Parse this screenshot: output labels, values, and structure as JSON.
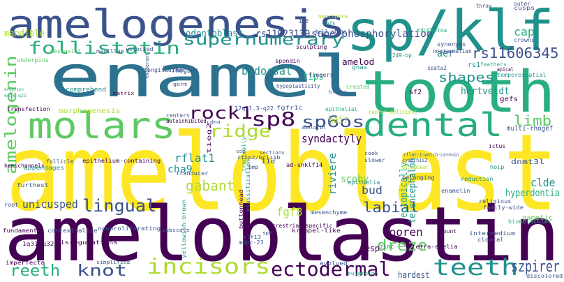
{
  "palette": {
    "dark_purple": "#440154",
    "indigo": "#3b528b",
    "blue": "#2c728e",
    "teal": "#21918c",
    "green": "#28ae80",
    "light_green": "#5ec962",
    "lime": "#addc30",
    "yellow": "#fde725"
  },
  "words": [
    {
      "text": "ameloblast",
      "color": "#fde725"
    },
    {
      "text": "ameloblastin",
      "color": "#440154"
    },
    {
      "text": "enamel",
      "color": "#2c728e"
    },
    {
      "text": "tooth",
      "color": "#28ae80"
    },
    {
      "text": "sp/klf",
      "color": "#21918c"
    },
    {
      "text": "amelogenesis",
      "color": "#3b528b"
    },
    {
      "text": "molars",
      "color": "#5ec962"
    },
    {
      "text": "dental",
      "color": "#28ae80"
    },
    {
      "text": "incisors",
      "color": "#addc30"
    },
    {
      "text": "ectodermal",
      "color": "#440154"
    },
    {
      "text": "teeth",
      "color": "#21918c"
    },
    {
      "text": "follistatin",
      "color": "#28ae80"
    },
    {
      "text": "supernumerary",
      "color": "#21918c"
    },
    {
      "text": "amelogenin",
      "color": "#5ec962"
    },
    {
      "text": "sp8",
      "color": "#440154"
    },
    {
      "text": "sp6os",
      "color": "#3b528b"
    },
    {
      "text": "rock1",
      "color": "#440154"
    },
    {
      "text": "ridge",
      "color": "#addc30"
    },
    {
      "text": "rs11606345",
      "color": "#3b528b"
    },
    {
      "text": "lingual",
      "color": "#3b528b"
    },
    {
      "text": "knot",
      "color": "#3b528b"
    },
    {
      "text": "reeth",
      "color": "#28ae80"
    },
    {
      "text": "dreze",
      "color": "#5ec962"
    },
    {
      "text": "szpirer",
      "color": "#3b528b"
    },
    {
      "text": "labial",
      "color": "#3b528b"
    },
    {
      "text": "shapes",
      "color": "#21918c"
    },
    {
      "text": "limb",
      "color": "#5ec962"
    },
    {
      "text": "gabant",
      "color": "#addc30"
    },
    {
      "text": "syndactyly",
      "color": "#440154"
    },
    {
      "text": "vooren",
      "color": "#440154"
    },
    {
      "text": "hertveldt",
      "color": "#21918c"
    },
    {
      "text": "cap",
      "color": "#28ae80"
    },
    {
      "text": "bidorsal",
      "color": "#21918c"
    },
    {
      "text": "superphosphorylation",
      "color": "#3b528b"
    },
    {
      "text": "rs11023139",
      "color": "#3b528b"
    },
    {
      "text": "odontoblast",
      "color": "#21918c"
    },
    {
      "text": "mandible",
      "color": "#addc30"
    },
    {
      "text": "unicusped",
      "color": "#3b528b"
    },
    {
      "text": "cha9",
      "color": "#21918c"
    },
    {
      "text": "rflat1",
      "color": "#21918c"
    },
    {
      "text": "fgf8",
      "color": "#addc30"
    },
    {
      "text": "bud",
      "color": "#3b528b"
    },
    {
      "text": "clde",
      "color": "#21918c"
    },
    {
      "text": "hyperdontia",
      "color": "#28ae80"
    },
    {
      "text": "riviere",
      "color": "#21918c"
    },
    {
      "text": "scohy",
      "color": "#5ec962"
    },
    {
      "text": "telencephalon",
      "color": "#21918c"
    },
    {
      "text": "ectopically",
      "color": "#28ae80"
    },
    {
      "text": "hair",
      "color": "#addc30"
    },
    {
      "text": "tips",
      "color": "#28ae80"
    },
    {
      "text": "amelod",
      "color": "#440154"
    },
    {
      "text": "aer",
      "color": "#21918c"
    },
    {
      "text": "nesp",
      "color": "#440154"
    },
    {
      "text": "hardest",
      "color": "#3b528b"
    },
    {
      "text": "spata2",
      "color": "#3b528b"
    },
    {
      "text": "rhogaps",
      "color": "#3b528b"
    },
    {
      "text": "rs1",
      "color": "#21918c"
    },
    {
      "text": "sf2",
      "color": "#440154"
    },
    {
      "text": "gefs",
      "color": "#440154"
    },
    {
      "text": "multi-rhogef",
      "color": "#3b528b"
    },
    {
      "text": "dnmt3l",
      "color": "#3b528b"
    },
    {
      "text": "gametic",
      "color": "#5ec962"
    },
    {
      "text": "morphogenesis",
      "color": "#addc30"
    },
    {
      "text": "comprehend",
      "color": "#21918c"
    },
    {
      "text": "underpins",
      "color": "#5ec962"
    },
    {
      "text": "mesoaxial",
      "color": "#5ec962"
    },
    {
      "text": "maxillae",
      "color": "#3b528b"
    },
    {
      "text": "longitudinal",
      "color": "#3b528b"
    },
    {
      "text": "unlocked",
      "color": "#3b528b"
    },
    {
      "text": "iee",
      "color": "#3b528b"
    },
    {
      "text": "neuropore",
      "color": "#addc30"
    },
    {
      "text": "zp2s",
      "color": "#21918c"
    },
    {
      "text": "bell-stage",
      "color": "#3b528b"
    },
    {
      "text": "cdc42-rhoa",
      "color": "#28ae80"
    },
    {
      "text": "cusps",
      "color": "#3b528b"
    },
    {
      "text": "crowns",
      "color": "#3b528b"
    },
    {
      "text": "outer",
      "color": "#3b528b"
    },
    {
      "text": "throw",
      "color": "#3b528b"
    },
    {
      "text": "synonyms",
      "color": "#3b528b"
    },
    {
      "text": "nonmammalian",
      "color": "#3b528b"
    },
    {
      "text": "feathers",
      "color": "#28ae80"
    },
    {
      "text": "apical",
      "color": "#440154"
    },
    {
      "text": "temporospatial",
      "color": "#21918c"
    },
    {
      "text": "249-bp",
      "color": "#21918c"
    },
    {
      "text": "spondin",
      "color": "#440154"
    },
    {
      "text": "sculpting",
      "color": "#440154"
    },
    {
      "text": "gnas",
      "color": "#21918c"
    },
    {
      "text": "created",
      "color": "#5ec962"
    },
    {
      "text": "fingers",
      "color": "#3b528b"
    },
    {
      "text": "matrix",
      "color": "#440154"
    },
    {
      "text": "germ",
      "color": "#3b528b"
    },
    {
      "text": "exuberant",
      "color": "#3b528b"
    },
    {
      "text": "hypoplasticity",
      "color": "#3b528b"
    },
    {
      "text": "formation",
      "color": "#3b528b"
    },
    {
      "text": "epithelial",
      "color": "#28ae80"
    },
    {
      "text": "fgfr1c",
      "color": "#3b528b"
    },
    {
      "text": "17q21.3-q22",
      "color": "#3b528b"
    },
    {
      "text": "centers",
      "color": "#3b528b"
    },
    {
      "text": "autoinhibited",
      "color": "#440154"
    },
    {
      "text": "cdna",
      "color": "#3b528b"
    },
    {
      "text": "amelotin",
      "color": "#3b528b"
    },
    {
      "text": "raptor-deficient",
      "color": "#addc30"
    },
    {
      "text": "cys2/his2",
      "color": "#3b528b"
    },
    {
      "text": "disappear",
      "color": "#addc30"
    },
    {
      "text": "rflat-1-wnt/b-catenin",
      "color": "#3b528b"
    },
    {
      "text": "ad-shklf14",
      "color": "#440154"
    },
    {
      "text": "ctip2/bcl11b",
      "color": "#3b528b"
    },
    {
      "text": "sections",
      "color": "#3b528b"
    },
    {
      "text": "cop",
      "color": "#3b528b"
    },
    {
      "text": "eruption",
      "color": "#28ae80"
    },
    {
      "text": "6q16-q21",
      "color": "#28ae80"
    },
    {
      "text": "transfection",
      "color": "#440154"
    },
    {
      "text": "hemichannels",
      "color": "#440154"
    },
    {
      "text": "appendages",
      "color": "#21918c"
    },
    {
      "text": "follicle",
      "color": "#3b528b"
    },
    {
      "text": "epithelium-containing",
      "color": "#440154"
    },
    {
      "text": "furthest",
      "color": "#3b528b"
    },
    {
      "text": "root",
      "color": "#3b528b"
    },
    {
      "text": "fundamental",
      "color": "#440154"
    },
    {
      "text": "contextualize",
      "color": "#3b528b"
    },
    {
      "text": "nonproliferating",
      "color": "#3b528b"
    },
    {
      "text": "subscale",
      "color": "#3b528b"
    },
    {
      "text": "1q31-q32",
      "color": "#440154"
    },
    {
      "text": "misregulations",
      "color": "#440154"
    },
    {
      "text": "imperfecta",
      "color": "#440154"
    },
    {
      "text": "simplified",
      "color": "#3b528b"
    },
    {
      "text": "klf13",
      "color": "#3b528b"
    },
    {
      "text": "sp5",
      "color": "#3b528b"
    },
    {
      "text": "kruppel-like",
      "color": "#440154"
    },
    {
      "text": "mesenchyme",
      "color": "#3b528b"
    },
    {
      "text": "evolved",
      "color": "#3b528b"
    },
    {
      "text": "outgrowth",
      "color": "#28ae80"
    },
    {
      "text": "tetra-amelia",
      "color": "#440154"
    },
    {
      "text": "zinc",
      "color": "#3b528b"
    },
    {
      "text": "fgf",
      "color": "#440154"
    },
    {
      "text": "cloacal",
      "color": "#3b528b"
    },
    {
      "text": "mount",
      "color": "#440154"
    },
    {
      "text": "intermedium",
      "color": "#3b528b"
    },
    {
      "text": "discolored",
      "color": "#3b528b"
    },
    {
      "text": "religious",
      "color": "#3b528b"
    },
    {
      "text": "family-wide",
      "color": "#3b528b"
    },
    {
      "text": "enamelin",
      "color": "#3b528b"
    },
    {
      "text": "slower",
      "color": "#3b528b"
    },
    {
      "text": "belonging",
      "color": "#3b528b"
    },
    {
      "text": "cook",
      "color": "#3b528b"
    },
    {
      "text": "reduction",
      "color": "#21918c"
    },
    {
      "text": "hoip",
      "color": "#21918c"
    },
    {
      "text": "epithelia",
      "color": "#21918c"
    },
    {
      "text": "tranducer",
      "color": "#3b528b"
    },
    {
      "text": "tieg2",
      "color": "#440154"
    },
    {
      "text": "bmp",
      "color": "#3b528b"
    },
    {
      "text": "11d",
      "color": "#3b528b"
    },
    {
      "text": "ironically",
      "color": "#28ae80"
    },
    {
      "text": "classification",
      "color": "#21918c"
    },
    {
      "text": "buttonhead",
      "color": "#440154"
    },
    {
      "text": "mdpc-23",
      "color": "#3b528b"
    },
    {
      "text": "terrestrial-specific",
      "color": "#440154"
    },
    {
      "text": "yellowish-brown",
      "color": "#21918c"
    },
    {
      "text": "biomolecular",
      "color": "#28ae80"
    },
    {
      "text": "ictus",
      "color": "#440154"
    }
  ]
}
